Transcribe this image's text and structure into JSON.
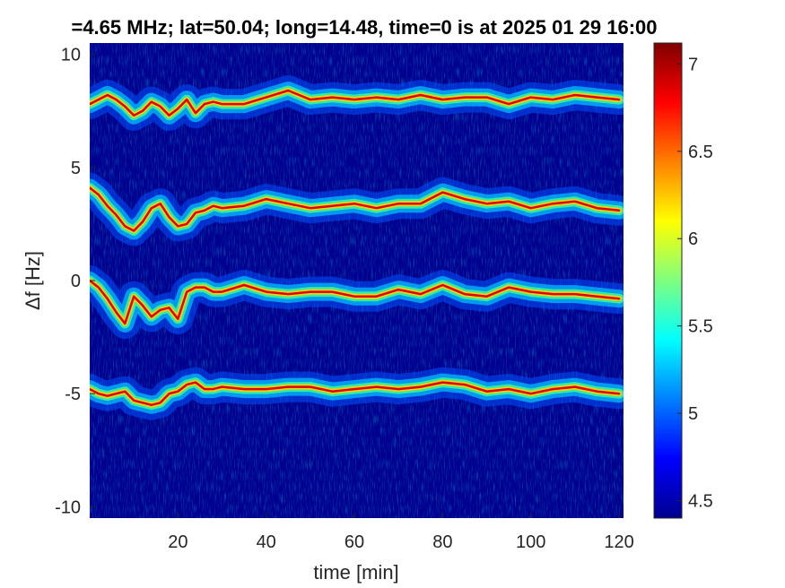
{
  "chart_data": {
    "type": "heatmap",
    "title": "=4.65 MHz;  lat=50.04; long=14.48, time=0 is at 2025 01 29 16:00",
    "xlabel": "time [min]",
    "ylabel": "Δf [Hz]",
    "xlim": [
      0,
      121
    ],
    "ylim": [
      -10.5,
      10.5
    ],
    "x_ticks": [
      20,
      40,
      60,
      80,
      100,
      120
    ],
    "x_tick_labels": [
      "20",
      "40",
      "60",
      "80",
      "100",
      "120"
    ],
    "y_ticks": [
      10,
      5,
      0,
      -5,
      -10
    ],
    "y_tick_labels": [
      "10",
      "5",
      "0",
      "-5",
      "-10"
    ],
    "colorbar": {
      "range": [
        4.4,
        7.12
      ],
      "ticks": [
        4.5,
        5,
        5.5,
        6,
        6.5,
        7
      ],
      "tick_labels": [
        "4.5",
        "5",
        "5.5",
        "6",
        "6.5",
        "7"
      ],
      "colormap": "jet"
    },
    "background_color": "#00008f",
    "bands": [
      {
        "x": [
          0,
          2,
          4,
          6,
          8,
          10,
          12,
          14,
          16,
          18,
          20,
          22,
          24,
          26,
          28,
          30,
          35,
          40,
          45,
          50,
          55,
          60,
          65,
          70,
          75,
          80,
          85,
          90,
          95,
          100,
          105,
          110,
          115,
          120
        ],
        "y": [
          7.8,
          8.0,
          8.2,
          8.0,
          7.7,
          7.3,
          7.5,
          7.9,
          7.7,
          7.3,
          7.6,
          8.0,
          7.4,
          7.8,
          7.9,
          7.8,
          7.8,
          8.1,
          8.4,
          8.0,
          8.1,
          8.0,
          8.1,
          8.0,
          8.2,
          8.0,
          8.1,
          8.1,
          7.8,
          8.1,
          8.0,
          8.2,
          8.1,
          8.0
        ]
      },
      {
        "x": [
          0,
          2,
          4,
          6,
          8,
          10,
          12,
          14,
          16,
          18,
          20,
          22,
          24,
          26,
          28,
          30,
          35,
          40,
          45,
          50,
          55,
          60,
          65,
          70,
          75,
          80,
          85,
          90,
          95,
          100,
          105,
          110,
          115,
          120
        ],
        "y": [
          4.1,
          3.8,
          3.3,
          2.9,
          2.4,
          2.2,
          2.6,
          3.2,
          3.4,
          2.8,
          2.4,
          2.5,
          3.0,
          3.1,
          3.3,
          3.2,
          3.3,
          3.6,
          3.4,
          3.2,
          3.3,
          3.4,
          3.2,
          3.4,
          3.4,
          3.9,
          3.6,
          3.4,
          3.5,
          3.2,
          3.4,
          3.5,
          3.2,
          3.1
        ]
      },
      {
        "x": [
          0,
          2,
          4,
          6,
          8,
          10,
          12,
          14,
          16,
          18,
          20,
          22,
          24,
          26,
          28,
          30,
          35,
          40,
          45,
          50,
          55,
          60,
          65,
          70,
          75,
          80,
          85,
          90,
          95,
          100,
          105,
          110,
          115,
          120
        ],
        "y": [
          0.0,
          -0.3,
          -0.8,
          -1.4,
          -1.9,
          -0.7,
          -1.1,
          -1.6,
          -1.3,
          -1.2,
          -1.7,
          -0.5,
          -0.3,
          -0.3,
          -0.5,
          -0.5,
          -0.2,
          -0.5,
          -0.6,
          -0.5,
          -0.5,
          -0.7,
          -0.7,
          -0.4,
          -0.6,
          -0.2,
          -0.6,
          -0.7,
          -0.3,
          -0.5,
          -0.6,
          -0.6,
          -0.7,
          -0.8
        ]
      },
      {
        "x": [
          0,
          2,
          4,
          6,
          8,
          10,
          12,
          14,
          16,
          18,
          20,
          22,
          24,
          26,
          28,
          30,
          35,
          40,
          45,
          50,
          55,
          60,
          65,
          70,
          75,
          80,
          85,
          90,
          95,
          100,
          105,
          110,
          115,
          120
        ],
        "y": [
          -4.8,
          -5.0,
          -5.1,
          -5.0,
          -4.9,
          -5.3,
          -5.4,
          -5.5,
          -5.4,
          -5.0,
          -4.9,
          -4.6,
          -4.5,
          -4.8,
          -4.8,
          -4.7,
          -4.8,
          -4.8,
          -4.7,
          -4.7,
          -4.9,
          -4.8,
          -4.7,
          -4.8,
          -4.7,
          -4.5,
          -4.6,
          -4.9,
          -4.8,
          -5.0,
          -4.8,
          -4.7,
          -4.9,
          -5.0
        ]
      }
    ]
  }
}
